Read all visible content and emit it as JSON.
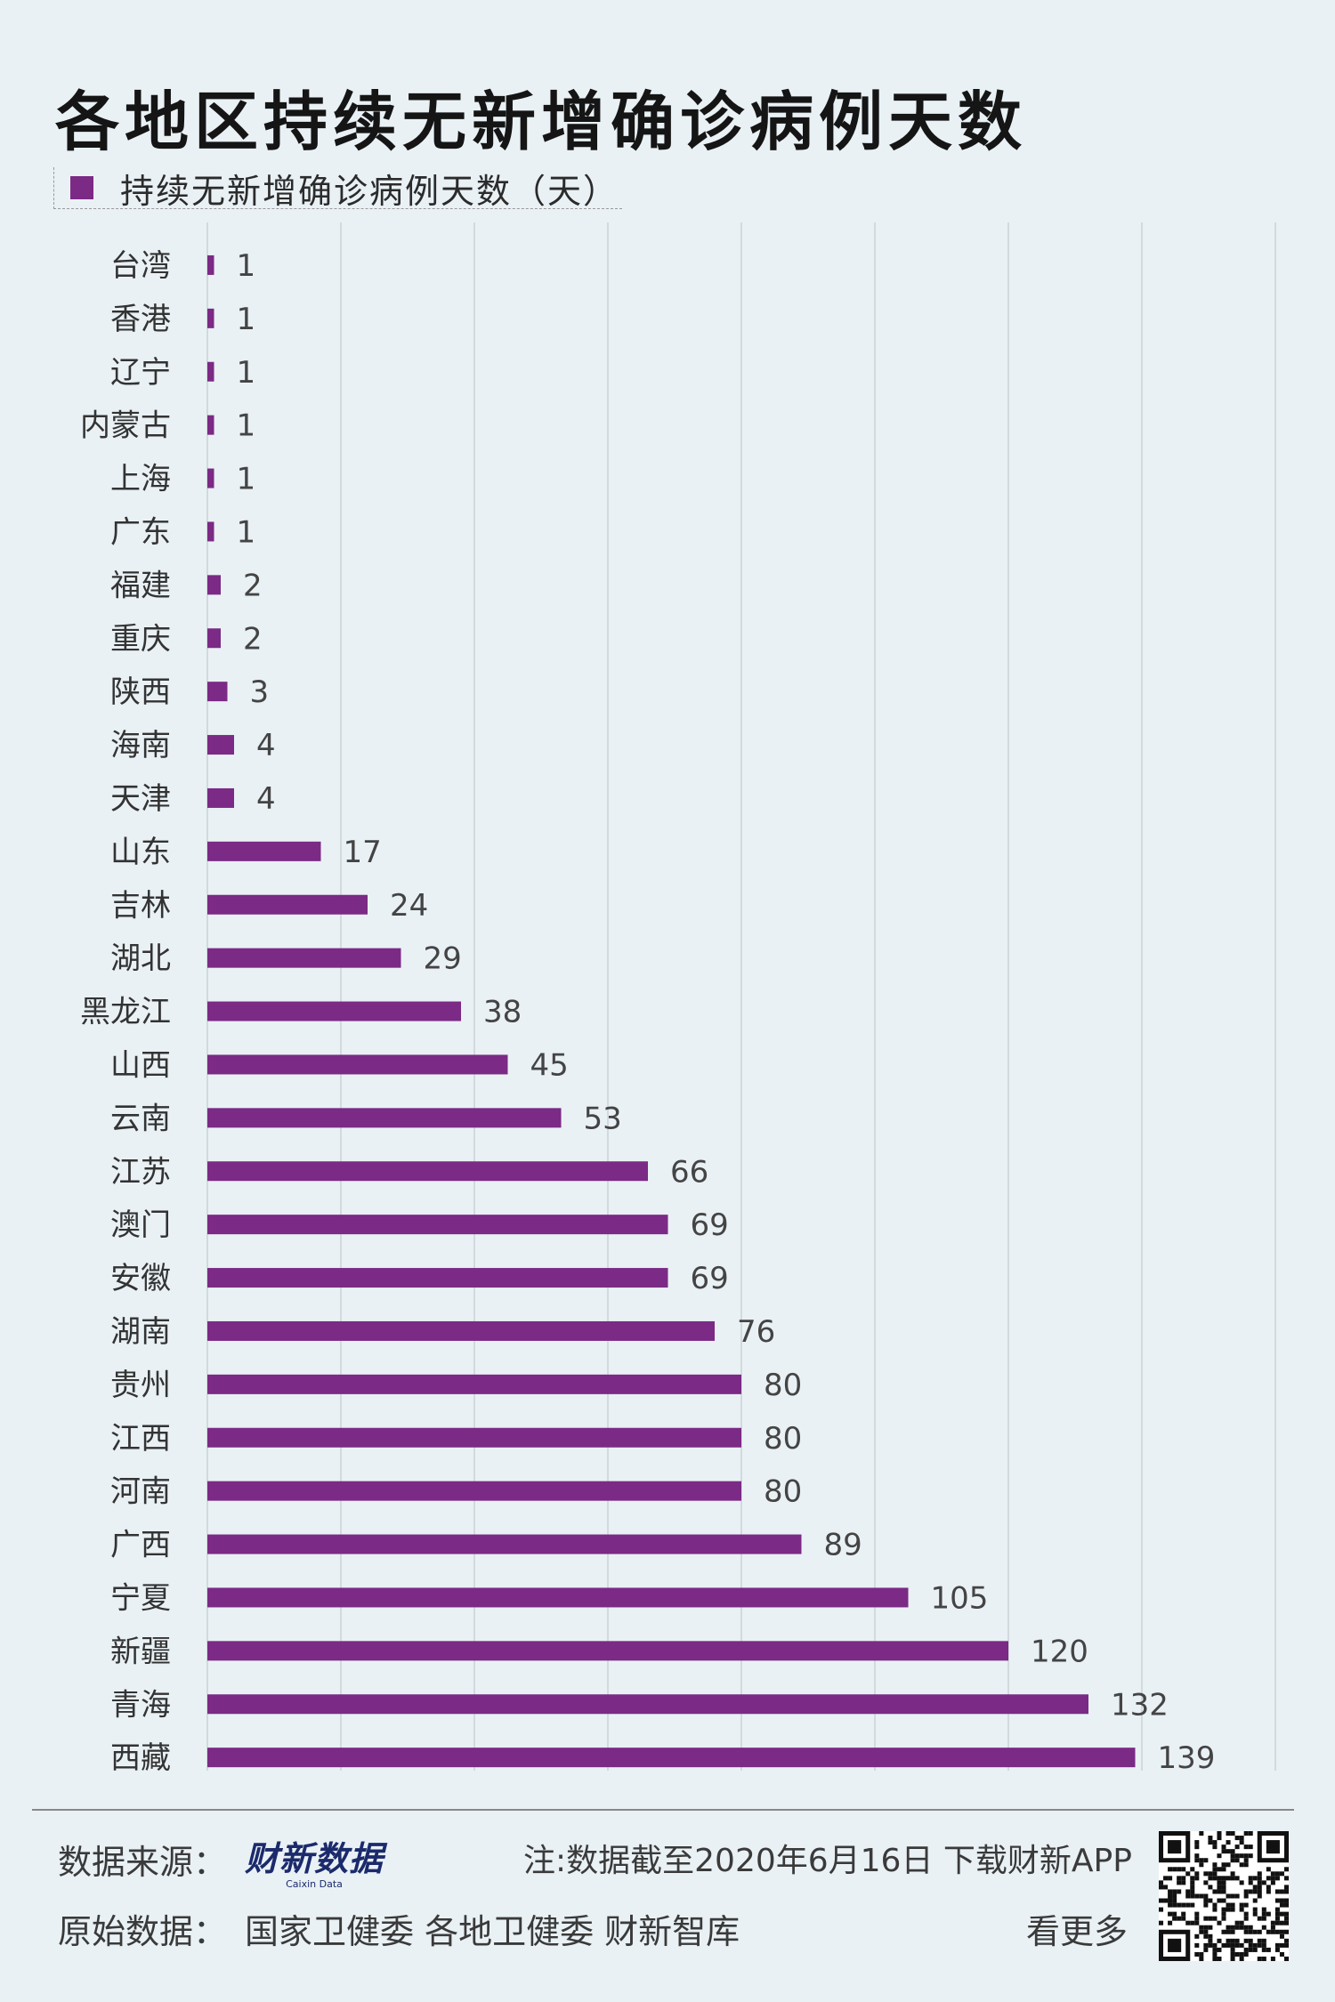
{
  "title": "各地区持续无新增确诊病例天数",
  "legend": {
    "label": "持续无新增确诊病例天数（天）",
    "color": "#7b2a85"
  },
  "chart_data": {
    "type": "bar",
    "orientation": "horizontal",
    "categories": [
      "台湾",
      "香港",
      "辽宁",
      "内蒙古",
      "上海",
      "广东",
      "福建",
      "重庆",
      "陕西",
      "海南",
      "天津",
      "山东",
      "吉林",
      "湖北",
      "黑龙江",
      "山西",
      "云南",
      "江苏",
      "澳门",
      "安徽",
      "湖南",
      "贵州",
      "江西",
      "河南",
      "广西",
      "宁夏",
      "新疆",
      "青海",
      "西藏"
    ],
    "series": [
      {
        "name": "持续无新增确诊病例天数（天）",
        "values": [
          1,
          1,
          1,
          1,
          1,
          1,
          2,
          2,
          3,
          4,
          4,
          17,
          24,
          29,
          38,
          45,
          53,
          66,
          69,
          69,
          76,
          80,
          80,
          80,
          89,
          105,
          120,
          132,
          139
        ]
      }
    ],
    "xlim": [
      0,
      160
    ],
    "grid": true,
    "legend_position": "top-left",
    "bar_color": "#7b2a85"
  },
  "footer": {
    "source_label": "数据来源：",
    "brand_logo": "财新数据",
    "brand_sub": "Caixin Data",
    "note": "注:数据截至2020年6月16日 下载财新APP",
    "original_label": "原始数据：",
    "original_sources": "国家卫健委  各地卫健委  财新智库",
    "more": "看更多",
    "qr_icon": "qr-code-icon"
  }
}
